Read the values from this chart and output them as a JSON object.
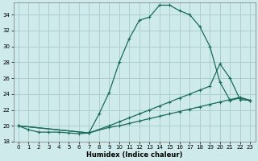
{
  "xlabel": "Humidex (Indice chaleur)",
  "ylabel": "",
  "xlim": [
    -0.5,
    23.5
  ],
  "ylim": [
    18,
    35.5
  ],
  "xticks": [
    0,
    1,
    2,
    3,
    4,
    5,
    6,
    7,
    8,
    9,
    10,
    11,
    12,
    13,
    14,
    15,
    16,
    17,
    18,
    19,
    20,
    21,
    22,
    23
  ],
  "yticks": [
    18,
    20,
    22,
    24,
    26,
    28,
    30,
    32,
    34
  ],
  "bg_color": "#ceeaea",
  "grid_color": "#aacfcf",
  "line_color": "#1a6b5a",
  "line1_x": [
    0,
    1,
    2,
    3,
    4,
    5,
    6,
    7,
    8,
    9,
    10,
    11,
    12,
    13,
    14,
    15,
    16,
    17,
    18,
    19,
    20,
    21,
    22,
    23
  ],
  "line1_y": [
    20.0,
    19.5,
    19.2,
    19.2,
    19.2,
    19.1,
    19.0,
    19.1,
    21.5,
    24.2,
    28.0,
    31.0,
    33.3,
    33.7,
    35.2,
    35.2,
    34.5,
    34.0,
    32.5,
    30.0,
    25.5,
    23.2,
    23.5,
    23.2
  ],
  "line2_x": [
    0,
    7,
    9,
    10,
    11,
    12,
    13,
    14,
    15,
    16,
    17,
    18,
    19,
    20,
    21,
    22,
    23
  ],
  "line2_y": [
    20.0,
    19.1,
    20.0,
    20.5,
    21.0,
    21.5,
    22.0,
    22.5,
    23.0,
    23.5,
    24.0,
    24.5,
    25.0,
    27.8,
    26.0,
    23.3,
    23.2
  ],
  "line3_x": [
    0,
    7,
    9,
    10,
    11,
    12,
    13,
    14,
    15,
    16,
    17,
    18,
    19,
    20,
    21,
    22,
    23
  ],
  "line3_y": [
    20.0,
    19.1,
    19.8,
    20.0,
    20.3,
    20.6,
    20.9,
    21.2,
    21.5,
    21.8,
    22.1,
    22.4,
    22.7,
    23.0,
    23.3,
    23.6,
    23.2
  ]
}
